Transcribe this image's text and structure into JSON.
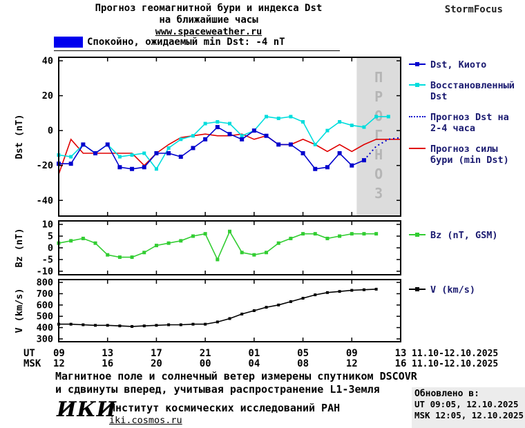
{
  "header": {
    "title_line1": "Прогноз геомагнитной бури и индекса Dst",
    "title_line2": "на ближайшие часы",
    "site": "www.spaceweather.ru",
    "brand": "StormFocus"
  },
  "status_legend": {
    "label": "Спокойно, ожидаемый min Dst: -4 nT",
    "color": "#0000ee"
  },
  "x_axis": {
    "ut_label": "UT",
    "msk_label": "MSK",
    "tick_hours": [
      0,
      4,
      8,
      12,
      16,
      20,
      24,
      28
    ],
    "ut_ticks": [
      "09",
      "13",
      "17",
      "21",
      "01",
      "05",
      "09",
      "13"
    ],
    "msk_ticks": [
      "12",
      "16",
      "20",
      "00",
      "04",
      "08",
      "12",
      "16"
    ],
    "ut_date": "11.10-12.10.2025",
    "msk_date": "11.10-12.10.2025"
  },
  "chart_data": [
    {
      "type": "line",
      "id": "dst",
      "ylabel": "Dst (nT)",
      "ylim": [
        -49,
        42
      ],
      "yticks": [
        40,
        20,
        0,
        -20,
        -40
      ],
      "xlim": [
        0,
        28
      ],
      "x_unit": "hours, ticks every 4h from 09 UT 11.10.2025",
      "forecast_region": {
        "start": 24.4,
        "end": 28,
        "label": "ПРОГНОЗ",
        "fill": "#dcdcdc",
        "text_color": "#b5b5b5"
      },
      "series": [
        {
          "id": "dst-kyoto",
          "name": "Dst, Киото",
          "color": "#0000cd",
          "line": "solid",
          "marker": "square",
          "marker_size": 6,
          "x": [
            0,
            1,
            2,
            3,
            4,
            5,
            6,
            7,
            8,
            9,
            10,
            11,
            12,
            13,
            14,
            15,
            16,
            17,
            18,
            19,
            20,
            21,
            22,
            23,
            24,
            25
          ],
          "values": [
            -19,
            -19,
            -8,
            -13,
            -8,
            -21,
            -22,
            -21,
            -13,
            -13,
            -15,
            -10,
            -5,
            2,
            -2,
            -5,
            0,
            -3,
            -8,
            -8,
            -13,
            -22,
            -21,
            -13,
            -20,
            -17
          ]
        },
        {
          "id": "dst-restored",
          "name": "Восстановленный Dst",
          "color": "#00dddd",
          "line": "solid",
          "marker": "square",
          "marker_size": 5,
          "x": [
            0,
            1,
            2,
            3,
            4,
            5,
            6,
            7,
            8,
            9,
            10,
            11,
            12,
            13,
            14,
            15,
            16,
            17,
            18,
            19,
            20,
            21,
            22,
            23,
            24,
            25,
            26,
            27
          ],
          "values": [
            -14,
            -15,
            -8,
            -13,
            -8,
            -15,
            -14,
            -13,
            -22,
            -10,
            -5,
            -3,
            4,
            5,
            4,
            -3,
            0,
            8,
            7,
            8,
            5,
            -8,
            0,
            5,
            3,
            2,
            8,
            8
          ]
        },
        {
          "id": "dst-forecast",
          "name": "Прогноз Dst на 2-4 часа",
          "color": "#0000cd",
          "line": "dotted",
          "marker": "none",
          "marker_size": 0,
          "x": [
            25,
            26,
            27,
            28
          ],
          "values": [
            -17,
            -9,
            -5,
            -4
          ]
        },
        {
          "id": "storm-force-forecast",
          "name": "Прогноз силы бури (min Dst)",
          "color": "#e00000",
          "line": "solid",
          "marker": "none",
          "marker_size": 0,
          "x": [
            0,
            1,
            2,
            3,
            4,
            5,
            6,
            7,
            8,
            9,
            10,
            11,
            12,
            13,
            14,
            15,
            16,
            17,
            18,
            19,
            20,
            21,
            22,
            23,
            24,
            25,
            26,
            27,
            28
          ],
          "values": [
            -25,
            -5,
            -13,
            -13,
            -13,
            -13,
            -13,
            -20,
            -13,
            -8,
            -4,
            -3,
            -2,
            -3,
            -3,
            -2,
            -5,
            -3,
            -8,
            -8,
            -5,
            -8,
            -12,
            -8,
            -12,
            -8,
            -5,
            -5,
            -5
          ]
        }
      ]
    },
    {
      "type": "line",
      "id": "bz",
      "ylabel": "Bz (nT)",
      "ylim": [
        -11.5,
        11.5
      ],
      "yticks": [
        10,
        5,
        0,
        -5,
        -10
      ],
      "xlim": [
        0,
        28
      ],
      "series": [
        {
          "id": "bz-gsm",
          "name": "Bz (nT, GSM)",
          "color": "#32cd32",
          "line": "solid",
          "marker": "square",
          "marker_size": 5,
          "x": [
            0,
            1,
            2,
            3,
            4,
            5,
            6,
            7,
            8,
            9,
            10,
            11,
            12,
            13,
            14,
            15,
            16,
            17,
            18,
            19,
            20,
            21,
            22,
            23,
            24,
            25,
            26
          ],
          "values": [
            2,
            3,
            4,
            2,
            -3,
            -4,
            -4,
            -2,
            1,
            2,
            3,
            5,
            6,
            -5,
            7,
            -2,
            -3,
            -2,
            2,
            4,
            6,
            6,
            4,
            5,
            6,
            6,
            6
          ]
        }
      ]
    },
    {
      "type": "line",
      "id": "v",
      "ylabel": "V (km/s)",
      "ylim": [
        275,
        825
      ],
      "yticks": [
        800,
        700,
        600,
        500,
        400,
        300
      ],
      "xlim": [
        0,
        28
      ],
      "series": [
        {
          "id": "solar-wind-speed",
          "name": "V (km/s)",
          "color": "#000000",
          "line": "solid",
          "marker": "square",
          "marker_size": 4,
          "x": [
            0,
            1,
            2,
            3,
            4,
            5,
            6,
            7,
            8,
            9,
            10,
            11,
            12,
            13,
            14,
            15,
            16,
            17,
            18,
            19,
            20,
            21,
            22,
            23,
            24,
            25,
            26
          ],
          "values": [
            430,
            430,
            425,
            420,
            420,
            415,
            410,
            415,
            420,
            425,
            425,
            430,
            430,
            450,
            480,
            520,
            550,
            580,
            600,
            630,
            660,
            690,
            710,
            720,
            730,
            735,
            740
          ]
        }
      ]
    }
  ],
  "footer": {
    "note_line1": "Магнитное поле и солнечный ветер измерены спутником DSCOVR",
    "note_line2": "и сдвинуты вперед, учитывая распространение L1-Земля",
    "updated_label": "Обновлено в:",
    "updated_ut": "UT  09:05, 12.10.2025",
    "updated_msk": "MSK 12:05, 12.10.2025",
    "logo": "ИКИ",
    "institute": "Институт космических исследований РАН",
    "site": "iki.cosmos.ru"
  }
}
